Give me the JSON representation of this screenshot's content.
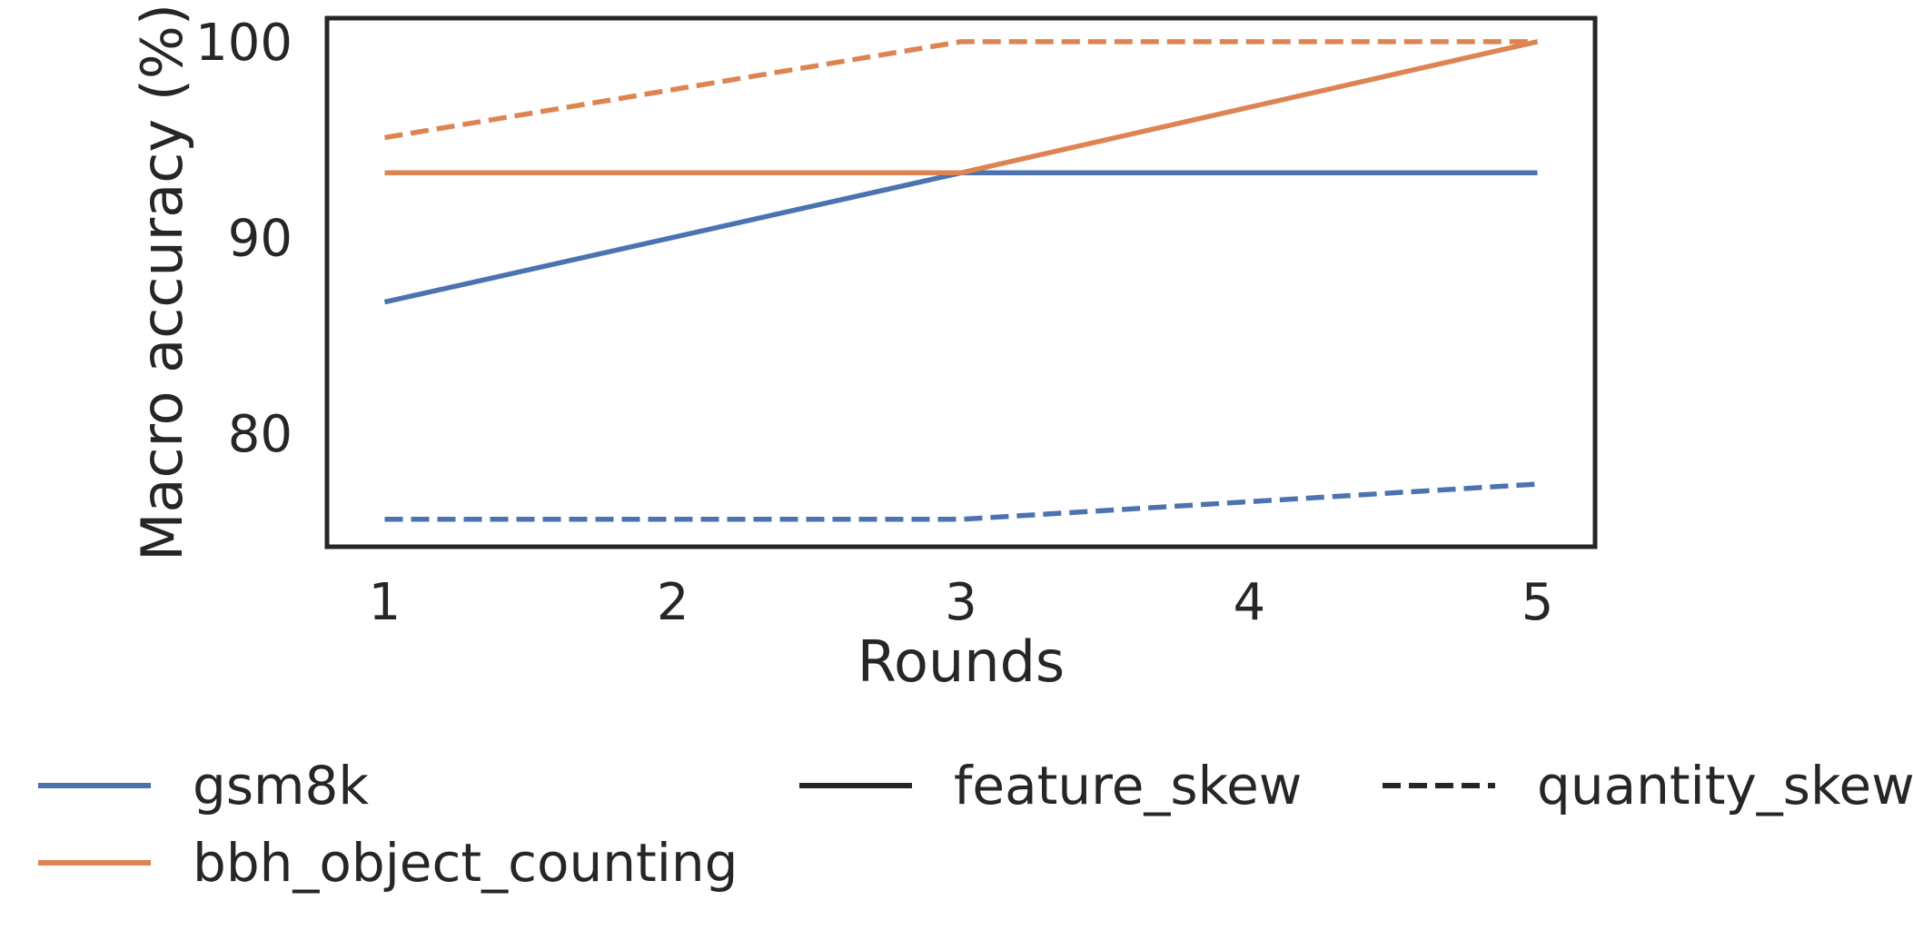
{
  "chart_data": {
    "type": "line",
    "title": "",
    "xlabel": "Rounds",
    "ylabel": "Macro accuracy (%)",
    "x": [
      1,
      2,
      3,
      4,
      5
    ],
    "x_ticks": [
      "1",
      "2",
      "3",
      "4",
      "5"
    ],
    "y_ticks": [
      "80",
      "90",
      "100"
    ],
    "xlim": [
      0.8,
      5.2
    ],
    "ylim": [
      74.2,
      101.2
    ],
    "grid": false,
    "legend_position": "bottom",
    "colors": {
      "gsm8k": "#4c72b0",
      "bbh_object_counting": "#dd8452",
      "style_key": "#262626"
    },
    "series": [
      {
        "dataset": "gsm8k",
        "setting": "feature_skew",
        "x": [
          1,
          3,
          5
        ],
        "values": [
          86.7,
          93.3,
          93.3
        ]
      },
      {
        "dataset": "gsm8k",
        "setting": "quantity_skew",
        "x": [
          1,
          3,
          5
        ],
        "values": [
          75.6,
          75.6,
          77.4
        ]
      },
      {
        "dataset": "bbh_object_counting",
        "setting": "feature_skew",
        "x": [
          1,
          3,
          5
        ],
        "values": [
          93.3,
          93.3,
          100.0
        ]
      },
      {
        "dataset": "bbh_object_counting",
        "setting": "quantity_skew",
        "x": [
          1,
          3,
          5
        ],
        "values": [
          95.1,
          100.0,
          100.0
        ]
      }
    ],
    "legend": {
      "colors": [
        {
          "label": "gsm8k",
          "key": "gsm8k"
        },
        {
          "label": "bbh_object_counting",
          "key": "bbh_object_counting"
        }
      ],
      "styles": [
        {
          "label": "feature_skew",
          "dashed": false
        },
        {
          "label": "quantity_skew",
          "dashed": true
        }
      ]
    }
  }
}
